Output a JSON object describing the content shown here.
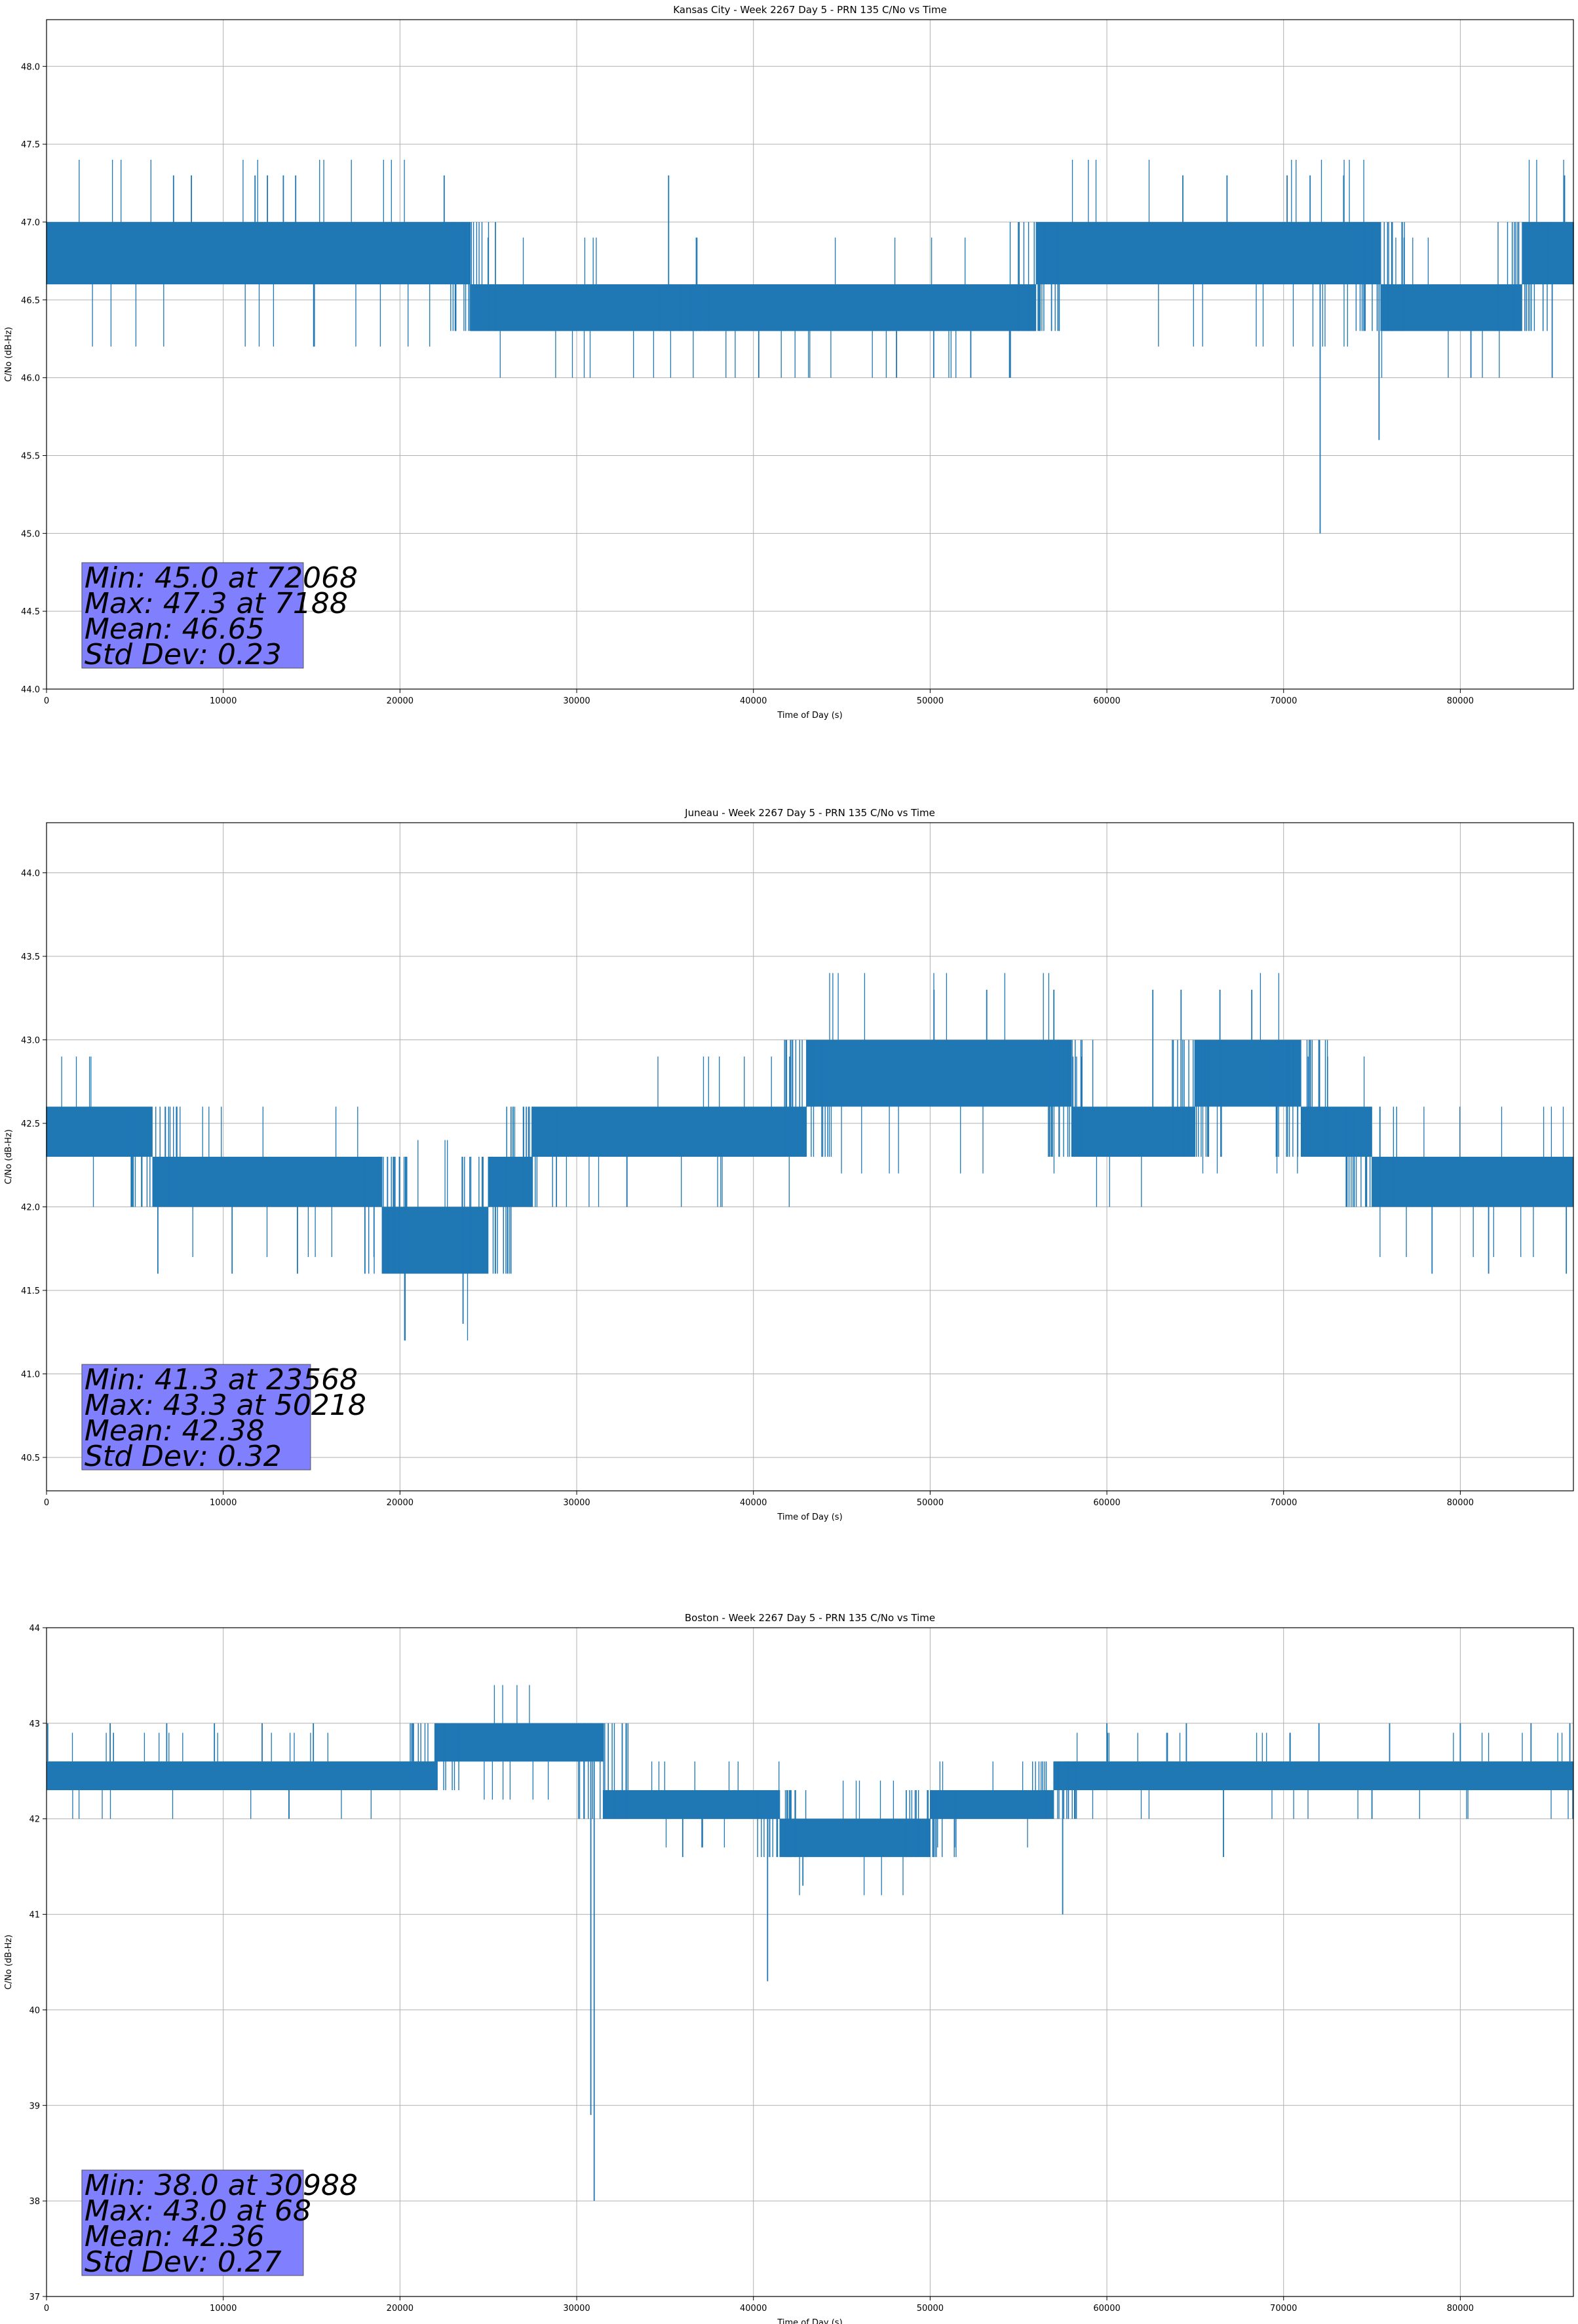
{
  "chart_data": [
    {
      "type": "line",
      "title": "Kansas City - Week 2267 Day 5 - PRN 135 C/No vs Time",
      "xlabel": "Time of Day (s)",
      "ylabel": "C/No (dB-Hz)",
      "xlim": [
        0,
        86400
      ],
      "ylim": [
        44.0,
        48.3
      ],
      "xticks": [
        0,
        10000,
        20000,
        30000,
        40000,
        50000,
        60000,
        70000,
        80000
      ],
      "yticks": [
        44.0,
        44.5,
        45.0,
        45.5,
        46.0,
        46.5,
        47.0,
        47.5,
        48.0
      ],
      "ytick_labels": [
        "44.0",
        "44.5",
        "45.0",
        "45.5",
        "46.0",
        "46.5",
        "47.0",
        "47.5",
        "48.0"
      ],
      "grid": true,
      "color": "#1f77b4",
      "stats": [
        "Min: 45.0 at 72068",
        "Max: 47.3 at 7188",
        "Mean: 46.65",
        "Std Dev: 0.23"
      ],
      "series": [
        {
          "segments": [
            {
              "x": [
                0,
                24000
              ],
              "low": 46.6,
              "high": 47.0
            },
            {
              "x": [
                24000,
                36000
              ],
              "low": 46.3,
              "high": 46.6
            },
            {
              "x": [
                36000,
                56000
              ],
              "low": 46.3,
              "high": 46.6
            },
            {
              "x": [
                56000,
                75500
              ],
              "low": 46.6,
              "high": 47.0
            },
            {
              "x": [
                75500,
                83500
              ],
              "low": 46.3,
              "high": 46.6
            },
            {
              "x": [
                83500,
                86400
              ],
              "low": 46.6,
              "high": 47.0
            }
          ],
          "peaks": [
            [
              7188,
              47.3
            ],
            [
              8200,
              47.3
            ],
            [
              11800,
              47.3
            ],
            [
              12500,
              47.3
            ],
            [
              13400,
              47.3
            ],
            [
              14100,
              47.3
            ],
            [
              22500,
              47.3
            ],
            [
              35200,
              47.3
            ],
            [
              64300,
              47.3
            ],
            [
              66800,
              47.3
            ],
            [
              70200,
              47.3
            ],
            [
              71500,
              47.3
            ],
            [
              73400,
              47.3
            ],
            [
              85900,
              47.3
            ]
          ],
          "dips": [
            [
              40300,
              46.0
            ],
            [
              48100,
              46.0
            ],
            [
              50200,
              46.0
            ],
            [
              52300,
              46.0
            ],
            [
              72068,
              45.0
            ],
            [
              75400,
              45.6
            ],
            [
              80600,
              46.0
            ],
            [
              85200,
              46.0
            ]
          ]
        }
      ]
    },
    {
      "type": "line",
      "title": "Juneau - Week 2267 Day 5 - PRN 135 C/No vs Time",
      "xlabel": "Time of Day (s)",
      "ylabel": "C/No (dB-Hz)",
      "xlim": [
        0,
        86400
      ],
      "ylim": [
        40.3,
        44.3
      ],
      "xticks": [
        0,
        10000,
        20000,
        30000,
        40000,
        50000,
        60000,
        70000,
        80000
      ],
      "yticks": [
        40.5,
        41.0,
        41.5,
        42.0,
        42.5,
        43.0,
        43.5,
        44.0
      ],
      "ytick_labels": [
        "40.5",
        "41.0",
        "41.5",
        "42.0",
        "42.5",
        "43.0",
        "43.5",
        "44.0"
      ],
      "grid": true,
      "color": "#1f77b4",
      "stats": [
        "Min: 41.3 at 23568",
        "Max: 43.3 at 50218",
        "Mean: 42.38",
        "Std Dev: 0.32"
      ],
      "series": [
        {
          "segments": [
            {
              "x": [
                0,
                6000
              ],
              "low": 42.3,
              "high": 42.6
            },
            {
              "x": [
                6000,
                19000
              ],
              "low": 42.0,
              "high": 42.3
            },
            {
              "x": [
                19000,
                25000
              ],
              "low": 41.6,
              "high": 42.0
            },
            {
              "x": [
                25000,
                27500
              ],
              "low": 42.0,
              "high": 42.3
            },
            {
              "x": [
                27500,
                43000
              ],
              "low": 42.3,
              "high": 42.6
            },
            {
              "x": [
                43000,
                58000
              ],
              "low": 42.6,
              "high": 43.0
            },
            {
              "x": [
                58000,
                65000
              ],
              "low": 42.3,
              "high": 42.6
            },
            {
              "x": [
                65000,
                71000
              ],
              "low": 42.6,
              "high": 43.0
            },
            {
              "x": [
                71000,
                75000
              ],
              "low": 42.3,
              "high": 42.6
            },
            {
              "x": [
                75000,
                86400
              ],
              "low": 42.0,
              "high": 42.3
            }
          ],
          "peaks": [
            [
              50218,
              43.3
            ],
            [
              53200,
              43.3
            ],
            [
              57000,
              43.3
            ],
            [
              62600,
              43.3
            ],
            [
              64200,
              43.3
            ],
            [
              66400,
              43.3
            ],
            [
              68200,
              43.3
            ]
          ],
          "dips": [
            [
              6300,
              41.6
            ],
            [
              10500,
              41.6
            ],
            [
              14200,
              41.6
            ],
            [
              21500,
              41.6
            ],
            [
              23568,
              41.3
            ],
            [
              26100,
              41.6
            ],
            [
              78400,
              41.6
            ],
            [
              81600,
              41.6
            ],
            [
              86000,
              41.6
            ]
          ]
        }
      ]
    },
    {
      "type": "line",
      "title": "Boston - Week 2267 Day 5 - PRN 135 C/No vs Time",
      "xlabel": "Time of Day (s)",
      "ylabel": "C/No (dB-Hz)",
      "xlim": [
        0,
        86400
      ],
      "ylim": [
        37.0,
        44.0
      ],
      "xticks": [
        0,
        10000,
        20000,
        30000,
        40000,
        50000,
        60000,
        70000,
        80000
      ],
      "yticks": [
        37,
        38,
        39,
        40,
        41,
        42,
        43,
        44
      ],
      "ytick_labels": [
        "37",
        "38",
        "39",
        "40",
        "41",
        "42",
        "43",
        "44"
      ],
      "grid": true,
      "color": "#1f77b4",
      "stats": [
        "Min: 38.0 at 30988",
        "Max: 43.0 at 68",
        "Mean: 42.36",
        "Std Dev: 0.27"
      ],
      "series": [
        {
          "segments": [
            {
              "x": [
                0,
                22000
              ],
              "low": 42.3,
              "high": 42.6
            },
            {
              "x": [
                22000,
                31500
              ],
              "low": 42.6,
              "high": 43.0
            },
            {
              "x": [
                31500,
                41500
              ],
              "low": 42.0,
              "high": 42.3
            },
            {
              "x": [
                41500,
                50000
              ],
              "low": 41.6,
              "high": 42.0
            },
            {
              "x": [
                50000,
                57000
              ],
              "low": 42.0,
              "high": 42.3
            },
            {
              "x": [
                57000,
                86400
              ],
              "low": 42.3,
              "high": 42.6
            }
          ],
          "peaks": [
            [
              68,
              43.0
            ],
            [
              3600,
              43.0
            ],
            [
              6800,
              43.0
            ],
            [
              9500,
              43.0
            ],
            [
              12200,
              43.0
            ],
            [
              15100,
              43.0
            ],
            [
              60000,
              43.0
            ],
            [
              64500,
              43.0
            ],
            [
              72000,
              43.0
            ],
            [
              76000,
              43.0
            ],
            [
              80000,
              43.0
            ],
            [
              84000,
              43.0
            ],
            [
              86200,
              43.0
            ]
          ],
          "dips": [
            [
              30988,
              38.0
            ],
            [
              30800,
              38.9
            ],
            [
              36000,
              41.6
            ],
            [
              40800,
              40.3
            ],
            [
              42800,
              41.3
            ],
            [
              57500,
              41.0
            ],
            [
              66600,
              41.6
            ],
            [
              75000,
              42.0
            ]
          ]
        }
      ]
    }
  ]
}
